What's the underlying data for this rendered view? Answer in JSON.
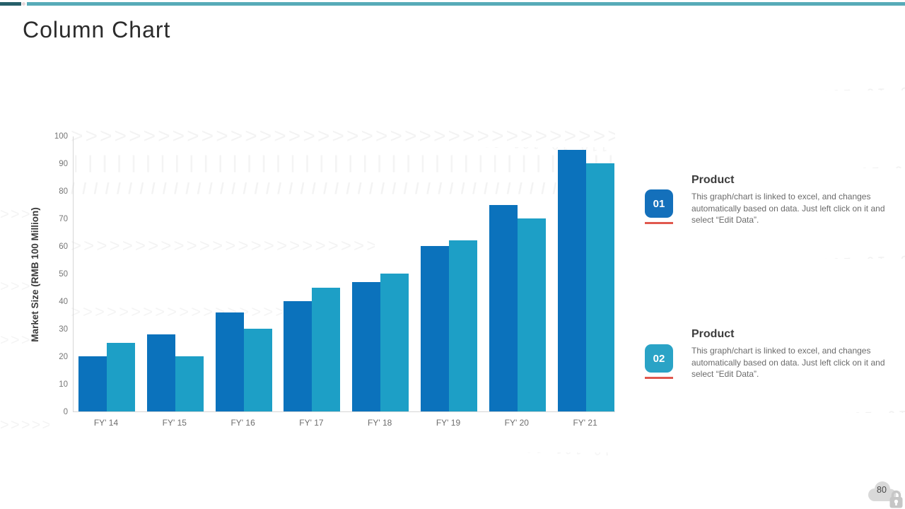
{
  "slide": {
    "title": "Column Chart",
    "page_number": "80"
  },
  "chart_data": {
    "type": "bar",
    "title": "",
    "categories": [
      "FY' 14",
      "FY' 15",
      "FY' 16",
      "FY' 17",
      "FY' 18",
      "FY' 19",
      "FY' 20",
      "FY' 21"
    ],
    "series": [
      {
        "color": "#0b72bc",
        "values": [
          20,
          28,
          36,
          40,
          47,
          60,
          75,
          95
        ]
      },
      {
        "color": "#1d9fc6",
        "values": [
          25,
          20,
          30,
          45,
          50,
          62,
          70,
          90
        ]
      }
    ],
    "xlabel": "",
    "ylabel": "Market Size (RMB 100 Million)",
    "ylim": [
      0,
      100
    ],
    "yticks": [
      0,
      10,
      20,
      30,
      40,
      50,
      60,
      70,
      80,
      90,
      100
    ],
    "grid": false,
    "legend": "none"
  },
  "products": [
    {
      "badge": "01",
      "badge_color": "#1470bb",
      "heading": "Product",
      "body": "This graph/chart is linked to excel,  and changes automatically based on data. Just left click on it and select “Edit Data”."
    },
    {
      "badge": "02",
      "badge_color": "#2aa3c6",
      "heading": "Product",
      "body": "This graph/chart is linked to excel,  and changes automatically based on data. Just left click on it and select “Edit Data”."
    }
  ],
  "colors": {
    "accent_dark_blue": "#0b72bc",
    "accent_teal": "#1d9fc6",
    "underline_red": "#e0584e",
    "topbar_dark": "#265f69",
    "topbar_teal": "#57abb8",
    "axis_line": "#d6d6d6",
    "cloud_gray": "#d9d9d9",
    "lock_gray": "#c6c6c6"
  },
  "watermark": {
    "binary": "10 100101 00 10110 01 00110 10 101 0010 11 0100 10",
    "chevrons": ">>>>>>>>>>>>>>>>>>>>>>>>>>>>>>>>>>>>>>>>",
    "bars": "||||||||||||||||||||||||||||||||||||||||||||||||||||||||",
    "slashes": "/ / / / / / / / / / / / / / / / / / / / / / / / / / / / / / / /"
  }
}
